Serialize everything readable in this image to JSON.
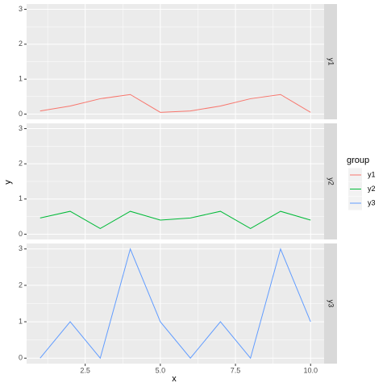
{
  "chart_data": {
    "type": "line",
    "facet": true,
    "x_label": "x",
    "y_label": "y",
    "legend_title": "group",
    "x": [
      1,
      2,
      3,
      4,
      5,
      6,
      7,
      8,
      9,
      10
    ],
    "xlim": [
      0.55,
      10.45
    ],
    "xticks": [
      2.5,
      {
        "value": 5,
        "label": "5.0"
      },
      7.5,
      {
        "value": 10,
        "label": "10.0"
      }
    ],
    "ylim": [
      -0.15,
      3.15
    ],
    "yticks": [
      0,
      1,
      2,
      3
    ],
    "grid": true,
    "series": [
      {
        "name": "y1",
        "color": "#f8766d",
        "values": [
          0.09,
          0.23,
          0.44,
          0.56,
          0.05,
          0.09,
          0.23,
          0.44,
          0.56,
          0.05
        ]
      },
      {
        "name": "y2",
        "color": "#00ba38",
        "values": [
          0.46,
          0.65,
          0.16,
          0.65,
          0.4,
          0.46,
          0.65,
          0.16,
          0.65,
          0.4
        ]
      },
      {
        "name": "y3",
        "color": "#619cff",
        "values": [
          0,
          1,
          0,
          3,
          1,
          0,
          1,
          0,
          3,
          1
        ]
      }
    ]
  }
}
